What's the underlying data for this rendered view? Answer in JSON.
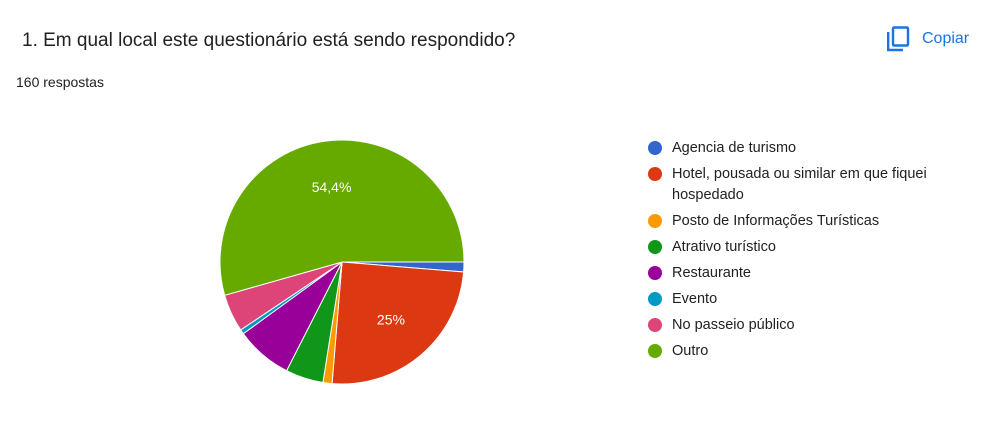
{
  "header": {
    "question": "1. Em qual local este questionário está sendo respondido?",
    "responses": "160 respostas",
    "copy_label": "Copiar",
    "copy_icon": "copy-icon"
  },
  "colors": {
    "accent": "#1a73e8"
  },
  "chart_data": {
    "type": "pie",
    "start_angle_deg": 90,
    "legend_position": "right",
    "series": [
      {
        "name": "Agencia de turismo",
        "value": 1.3,
        "color": "#3366cc",
        "label": ""
      },
      {
        "name": "Hotel, pousada ou similar em que fiquei hospedado",
        "value": 25,
        "color": "#dc3912",
        "label": "25%"
      },
      {
        "name": "Posto de Informações Turísticas",
        "value": 1.2,
        "color": "#ff9900",
        "label": ""
      },
      {
        "name": "Atrativo turístico",
        "value": 5,
        "color": "#109618",
        "label": ""
      },
      {
        "name": "Restaurante",
        "value": 7.5,
        "color": "#990099",
        "label": ""
      },
      {
        "name": "Evento",
        "value": 0.6,
        "color": "#0099c6",
        "label": ""
      },
      {
        "name": "No passeio público",
        "value": 5,
        "color": "#dd4477",
        "label": ""
      },
      {
        "name": "Outro",
        "value": 54.4,
        "color": "#66aa00",
        "label": "54,4%"
      }
    ]
  }
}
